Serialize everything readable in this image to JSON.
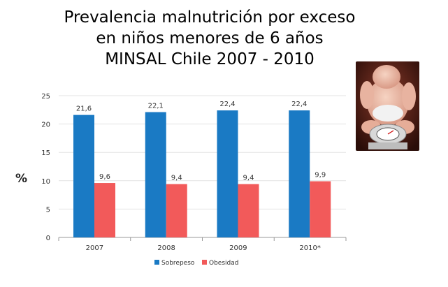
{
  "title_lines": [
    "Prevalencia malnutrición por exceso",
    "en niños menores de 6 años",
    "MINSAL Chile 2007 - 2010"
  ],
  "unit_label": "%",
  "photo": {
    "subject": "baby-on-scale"
  },
  "chart_data": {
    "type": "bar",
    "title": "",
    "xlabel": "",
    "ylabel": "%",
    "ylim": [
      0,
      25
    ],
    "yticks": [
      0,
      5,
      10,
      15,
      20,
      25
    ],
    "categories": [
      "2007",
      "2008",
      "2009",
      "2010*"
    ],
    "series": [
      {
        "name": "Sobrepeso",
        "color": "#1a7ac4",
        "values": [
          21.6,
          22.1,
          22.4,
          22.4
        ],
        "labels": [
          "21,6",
          "22,1",
          "22,4",
          "22,4"
        ]
      },
      {
        "name": "Obesidad",
        "color": "#f25a5a",
        "values": [
          9.6,
          9.4,
          9.4,
          9.9
        ],
        "labels": [
          "9,6",
          "9,4",
          "9,4",
          "9,9"
        ]
      }
    ],
    "grid": true,
    "legend_position": "bottom"
  }
}
